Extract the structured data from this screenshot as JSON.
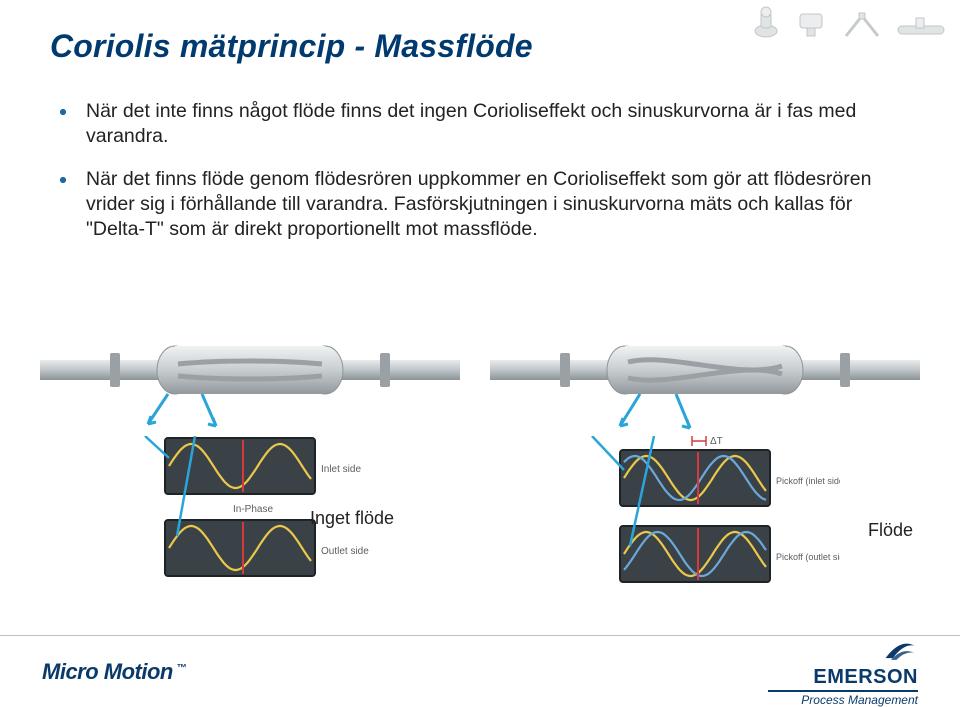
{
  "title": "Coriolis mätprincip - Massflöde",
  "bullets": [
    "När det inte finns något flöde finns det ingen Corioliseffekt och sinuskurvorna är i fas med varandra.",
    "När det finns flöde genom flödesrören uppkommer en Corioliseffekt som gör att flödesrören vrider sig i förhållande till varandra. Fasförskjutningen i sinuskurvorna mäts och kallas för \"Delta-T\" som är direkt proportionellt mot massflöde."
  ],
  "labels": {
    "noflow": "Inget flöde",
    "flow": "Flöde"
  },
  "left_diag": {
    "scope1_label": "Inlet side",
    "scope2_label": "Outlet side",
    "phase_text": "In-Phase",
    "arrow_color": "#2aa5d9",
    "phase_shift": 0
  },
  "right_diag": {
    "scope1_label": "Pickoff (inlet side)",
    "scope2_label": "Pickoff (outlet side)",
    "phase_text": "ΔT",
    "arrow_color": "#2aa5d9",
    "phase_shift": 12
  },
  "colors": {
    "title": "#003a6f",
    "bullet_dot": "#1a6ba8",
    "text": "#222222",
    "pipe_body": "#bfc5c8",
    "pipe_light": "#e8ecee",
    "pipe_dark": "#8d9498",
    "tube_outer": "#9aa0a4",
    "scope_bg": "#3b4247",
    "scope_border": "#1e2326",
    "wave_yellow": "#e9c84a",
    "wave_blue": "#6aa9d9",
    "marker_red": "#d63a3a",
    "scope_label": "#c9cfd3",
    "footer_rule": "#bfbfbf",
    "brand": "#0a3a6a"
  },
  "footer": {
    "left_brand": "Micro Motion",
    "right_brand": "EMERSON",
    "right_sub": "Process Management"
  }
}
